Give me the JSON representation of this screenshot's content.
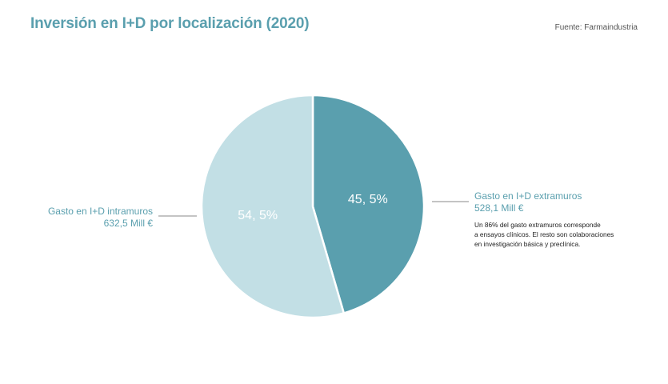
{
  "header": {
    "title": "Inversión en I+D por localización (2020)",
    "source": "Fuente: Farmaindustria"
  },
  "colors": {
    "title": "#5a9fae",
    "intramuros": "#c2dfe5",
    "extramuros": "#5a9fae",
    "label": "#5a9fae"
  },
  "chart_data": {
    "type": "pie",
    "title": "Inversión en I+D por localización (2020)",
    "slices": [
      {
        "key": "extramuros",
        "percent": 45.5,
        "percent_label": "45, 5%",
        "name": "Gasto en I+D extramuros",
        "amount_label": "528,1 Mill €",
        "value": 528.1,
        "color": "#5a9fae"
      },
      {
        "key": "intramuros",
        "percent": 54.5,
        "percent_label": "54, 5%",
        "name": "Gasto en I+D intramuros",
        "amount_label": "632,5 Mill €",
        "value": 632.5,
        "color": "#c2dfe5"
      }
    ]
  },
  "annotation": {
    "lines": [
      "Un 86% del gasto extramuros corresponde",
      "a ensayos clínicos. El resto son colaboraciones",
      "en investigación básica y preclínica."
    ]
  }
}
